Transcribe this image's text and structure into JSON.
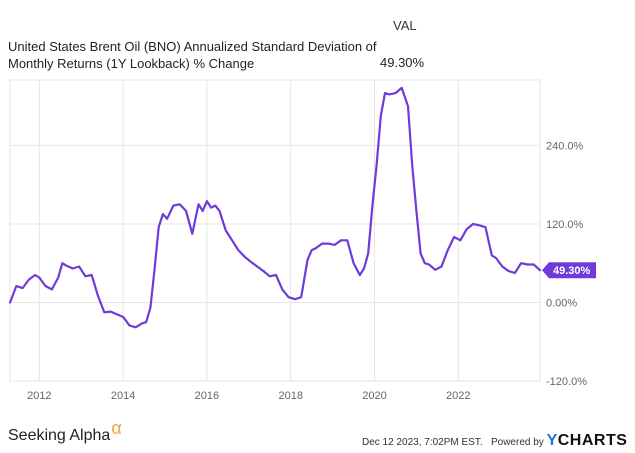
{
  "legend": {
    "header": "VAL",
    "series_name": "United States Brent Oil (BNO) Annualized Standard Deviation of Monthly Returns (1Y Lookback) % Change",
    "value": "49.30%"
  },
  "footer": {
    "left_brand": "Seeking Alpha",
    "alpha_symbol": "α",
    "timestamp": "Dec 12 2023, 7:02PM EST.",
    "powered_by": "Powered by",
    "brand_mark": "Y",
    "brand_rest": "CHARTS"
  },
  "colors": {
    "line": "#6f3bd8",
    "label_bg": "#6f3bd8",
    "grid": "#e6e6e6"
  },
  "chart_data": {
    "type": "line",
    "title": "United States Brent Oil (BNO) Annualized Standard Deviation of Monthly Returns (1Y Lookback) % Change",
    "xlabel": "",
    "ylabel": "",
    "xlim": [
      2011.3,
      2023.95
    ],
    "ylim": [
      -120,
      340
    ],
    "x_ticks": [
      2012,
      2014,
      2016,
      2018,
      2020,
      2022
    ],
    "x_tick_labels": [
      "2012",
      "2014",
      "2016",
      "2018",
      "2020",
      "2022"
    ],
    "y_ticks": [
      -120,
      0,
      120,
      240
    ],
    "y_tick_labels": [
      "-120.0%",
      "0.00%",
      "120.0%",
      "240.0%"
    ],
    "last_value_label": "49.30%",
    "series": [
      {
        "name": "VAL",
        "x": [
          2011.3,
          2011.45,
          2011.6,
          2011.75,
          2011.9,
          2012.0,
          2012.15,
          2012.3,
          2012.45,
          2012.55,
          2012.65,
          2012.8,
          2012.95,
          2013.1,
          2013.25,
          2013.4,
          2013.55,
          2013.7,
          2013.85,
          2014.0,
          2014.15,
          2014.3,
          2014.45,
          2014.55,
          2014.65,
          2014.75,
          2014.85,
          2014.95,
          2015.05,
          2015.2,
          2015.35,
          2015.5,
          2015.65,
          2015.8,
          2015.9,
          2016.0,
          2016.1,
          2016.2,
          2016.3,
          2016.45,
          2016.6,
          2016.75,
          2016.9,
          2017.05,
          2017.2,
          2017.35,
          2017.5,
          2017.65,
          2017.8,
          2017.95,
          2018.1,
          2018.25,
          2018.4,
          2018.5,
          2018.6,
          2018.75,
          2018.9,
          2019.05,
          2019.2,
          2019.35,
          2019.5,
          2019.65,
          2019.75,
          2019.85,
          2019.95,
          2020.05,
          2020.15,
          2020.25,
          2020.35,
          2020.5,
          2020.65,
          2020.8,
          2020.9,
          2021.0,
          2021.1,
          2021.2,
          2021.3,
          2021.45,
          2021.6,
          2021.75,
          2021.9,
          2022.05,
          2022.2,
          2022.35,
          2022.5,
          2022.65,
          2022.8,
          2022.9,
          2023.05,
          2023.2,
          2023.35,
          2023.5,
          2023.65,
          2023.8,
          2023.95
        ],
        "values": [
          0,
          25,
          22,
          35,
          42,
          38,
          25,
          20,
          38,
          60,
          56,
          52,
          55,
          40,
          42,
          10,
          -15,
          -14,
          -18,
          -22,
          -35,
          -38,
          -32,
          -30,
          -8,
          50,
          115,
          135,
          128,
          148,
          150,
          140,
          105,
          150,
          140,
          155,
          145,
          148,
          140,
          110,
          95,
          80,
          70,
          62,
          55,
          48,
          40,
          42,
          20,
          8,
          5,
          8,
          65,
          80,
          83,
          90,
          90,
          88,
          95,
          95,
          60,
          42,
          52,
          75,
          148,
          210,
          285,
          320,
          318,
          320,
          328,
          300,
          210,
          140,
          75,
          60,
          58,
          50,
          55,
          80,
          100,
          95,
          112,
          120,
          118,
          115,
          72,
          68,
          55,
          48,
          45,
          60,
          58,
          58,
          49.3
        ]
      }
    ]
  }
}
